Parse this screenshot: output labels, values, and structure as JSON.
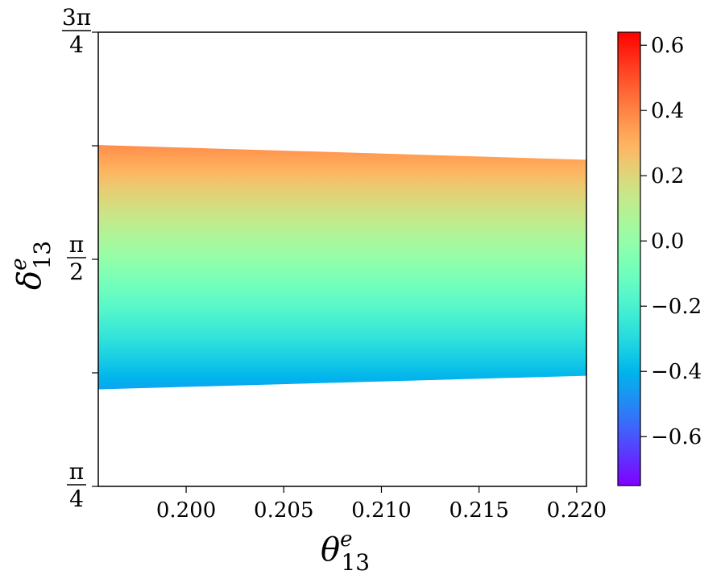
{
  "chart_data": {
    "type": "heatmap",
    "xlabel": {
      "symbol": "θ",
      "sup": "e",
      "sub": "13"
    },
    "ylabel": {
      "symbol": "δ",
      "sup": "e",
      "sub": "13"
    },
    "xlim": [
      0.1955,
      0.2205
    ],
    "ylim": [
      0.7853981634,
      2.3561944902
    ],
    "x_ticks": [
      {
        "value": 0.2,
        "label": "0.200"
      },
      {
        "value": 0.205,
        "label": "0.205"
      },
      {
        "value": 0.21,
        "label": "0.210"
      },
      {
        "value": 0.215,
        "label": "0.215"
      },
      {
        "value": 0.22,
        "label": "0.220"
      }
    ],
    "y_ticks": [
      {
        "value": 0.7853981634,
        "num": "π",
        "den": "4"
      },
      {
        "value": 1.1780972451,
        "num": "",
        "den": ""
      },
      {
        "value": 1.5707963268,
        "num": "π",
        "den": "2"
      },
      {
        "value": 1.9634954085,
        "num": "",
        "den": ""
      },
      {
        "value": 2.3561944902,
        "num": "3π",
        "den": "4"
      }
    ],
    "region": {
      "x": [
        0.1955,
        0.2205
      ],
      "upper_boundary": [
        1.966,
        1.915
      ],
      "lower_boundary": [
        1.121,
        1.168
      ]
    },
    "colorbar": {
      "range": [
        -0.75,
        0.64
      ],
      "ticks": [
        {
          "value": 0.6,
          "label": "0.6"
        },
        {
          "value": 0.4,
          "label": "0.4"
        },
        {
          "value": 0.2,
          "label": "0.2"
        },
        {
          "value": 0.0,
          "label": "0.0"
        },
        {
          "value": -0.2,
          "label": "−0.2"
        },
        {
          "value": -0.4,
          "label": "−0.4"
        },
        {
          "value": -0.6,
          "label": "−0.6"
        }
      ],
      "colormap": "rainbow"
    },
    "value_range_shown": [
      -0.44,
      0.38
    ]
  }
}
